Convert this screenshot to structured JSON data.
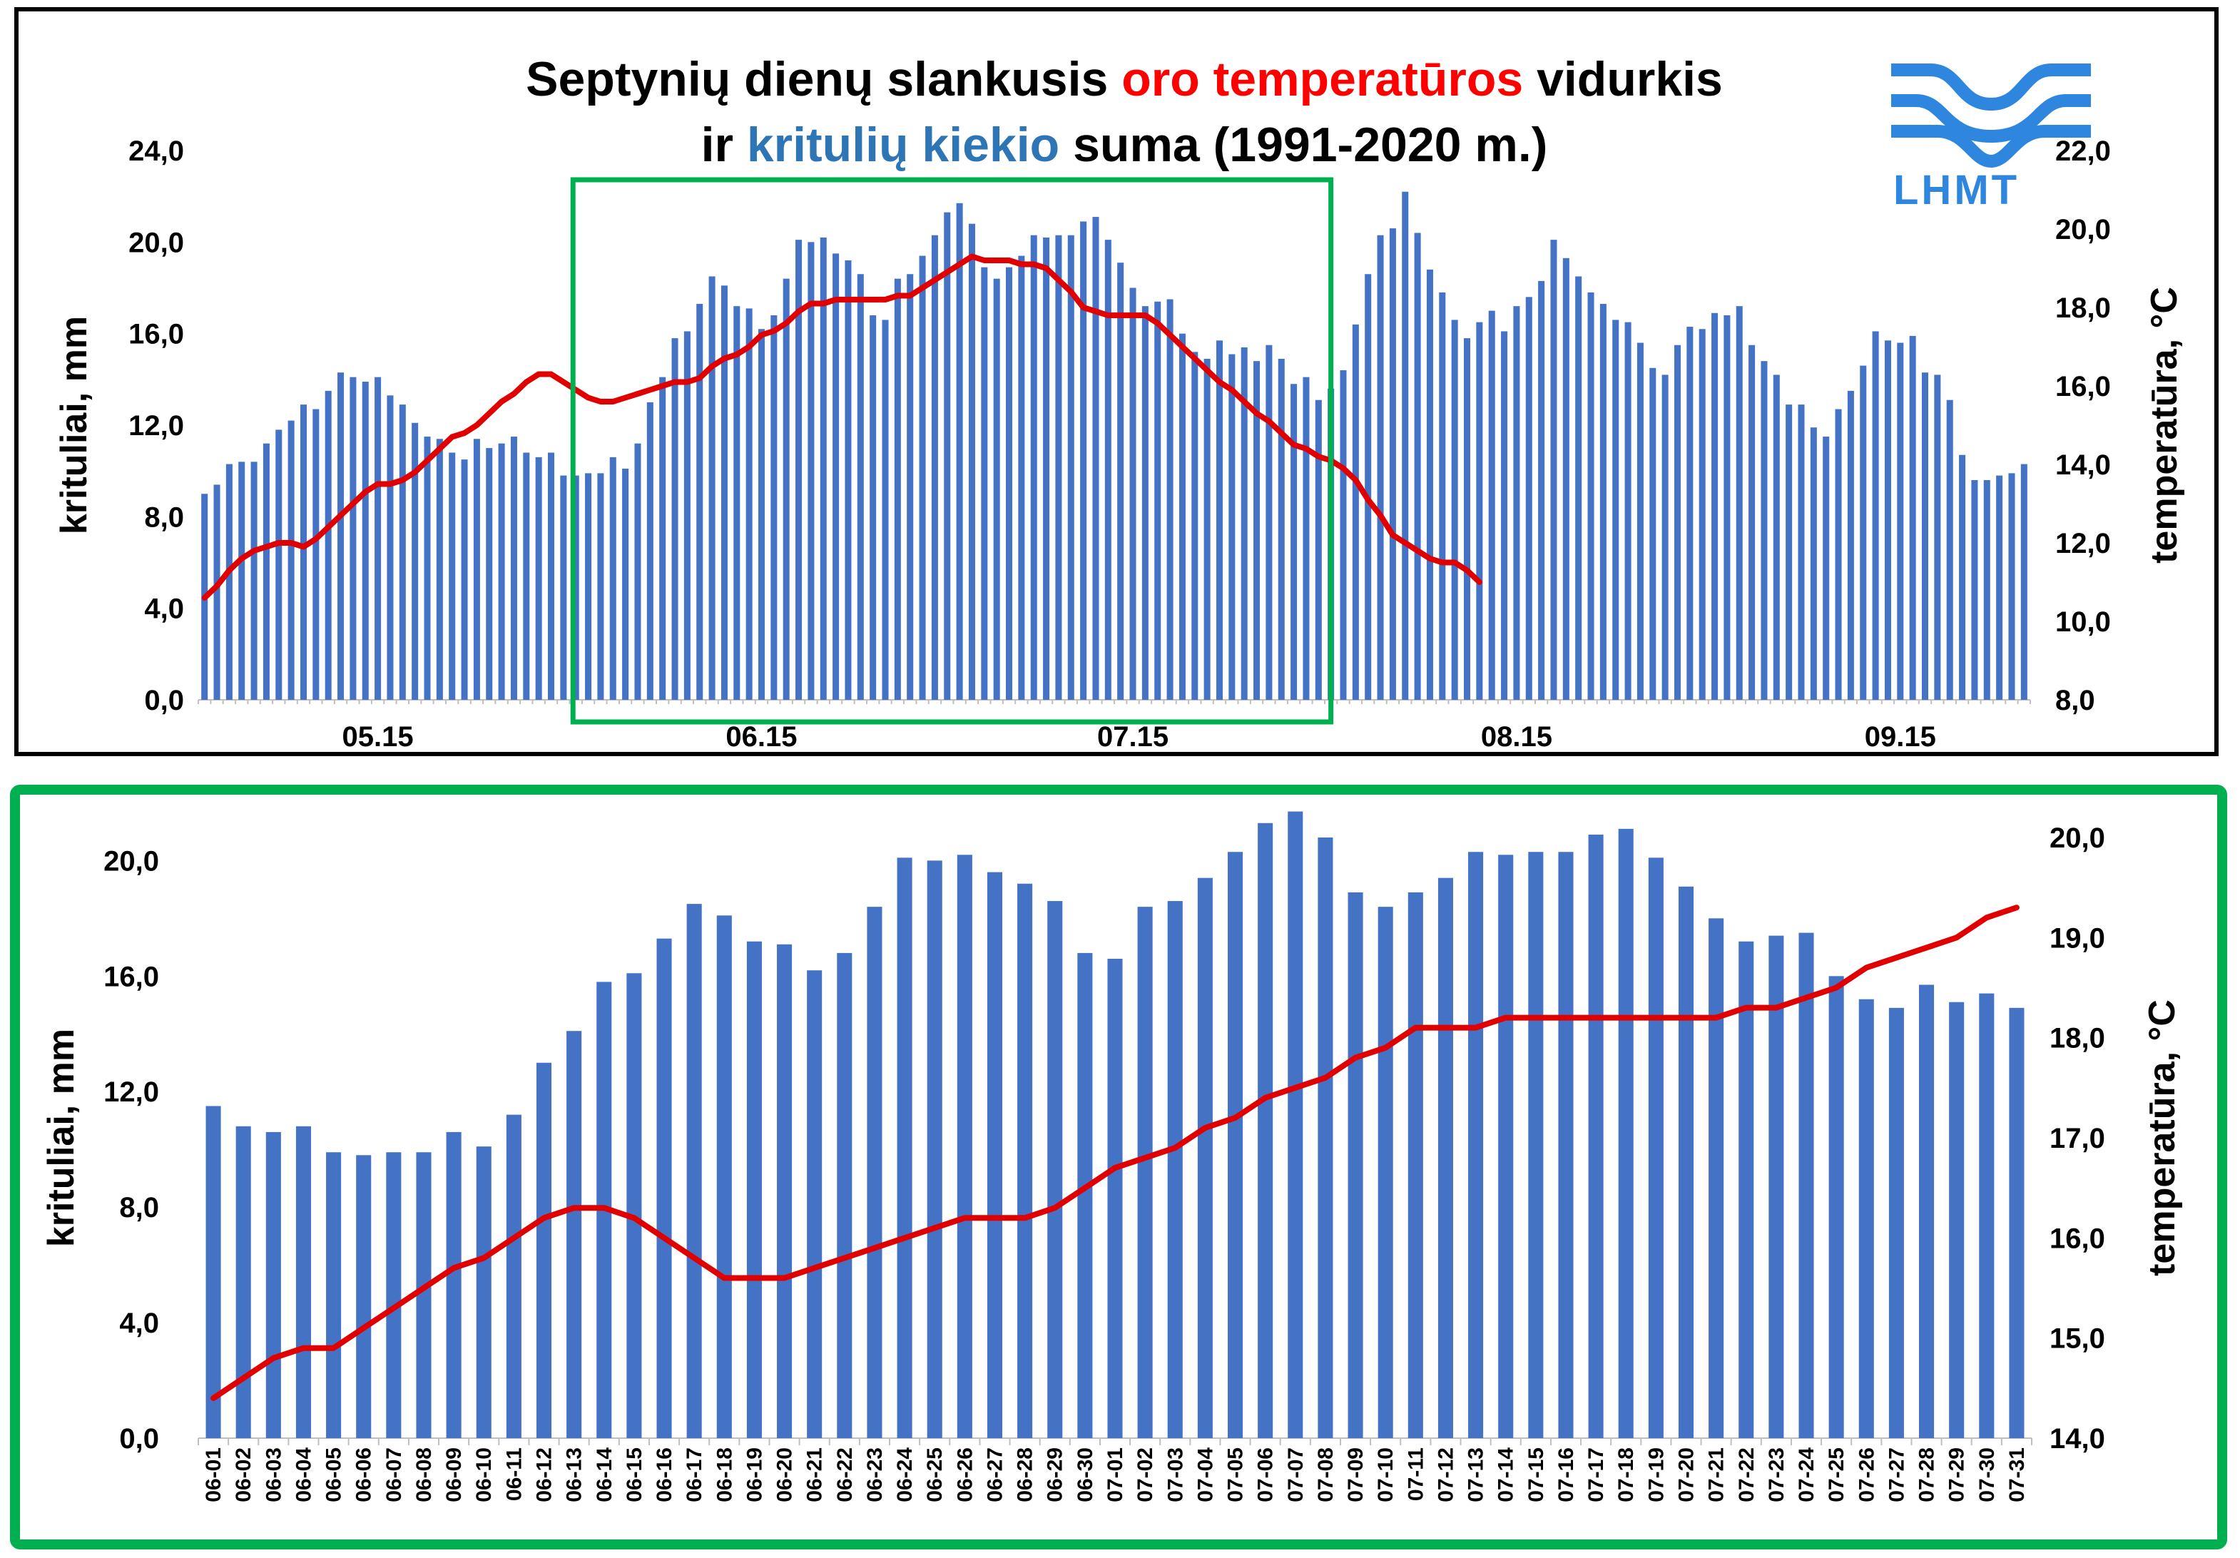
{
  "title": {
    "line1_prefix": "Septynių dienų slankusis ",
    "line1_red": "oro temperatūros",
    "line1_suffix": " vidurkis",
    "line2_prefix": "ir ",
    "line2_blue": "kritulių kiekio",
    "line2_suffix": " suma (1991-2020 m.)"
  },
  "logo": {
    "text": "LHMT"
  },
  "colors": {
    "bars": "#4472c4",
    "line": "#e00000",
    "title_red": "#ff0000",
    "title_blue": "#2e75b6",
    "highlight": "#00b050"
  },
  "chart_data": [
    {
      "type": "bar+line",
      "ylabel": "krituliai, mm",
      "y2label": "temperatūra, °C",
      "ylim": [
        0,
        24
      ],
      "y2lim": [
        8,
        22
      ],
      "yticks": [
        "0,0",
        "4,0",
        "8,0",
        "12,0",
        "16,0",
        "20,0",
        "24,0"
      ],
      "y2ticks": [
        "8,0",
        "10,0",
        "12,0",
        "14,0",
        "16,0",
        "18,0",
        "20,0",
        "22,0"
      ],
      "xticks": [
        "05.15",
        "06.15",
        "07.15",
        "08.15",
        "09.15"
      ],
      "highlight_range": [
        "06-01",
        "07-31"
      ],
      "start_date": "05-01",
      "precip_mm": [
        9.0,
        9.4,
        10.3,
        10.4,
        10.4,
        11.2,
        11.8,
        12.2,
        12.9,
        12.7,
        13.5,
        14.3,
        14.1,
        13.9,
        14.1,
        13.3,
        12.9,
        12.1,
        11.5,
        11.4,
        10.8,
        10.5,
        11.4,
        11.0,
        11.2,
        11.5,
        10.8,
        10.6,
        10.8,
        9.8,
        9.8,
        9.9,
        9.9,
        10.6,
        10.1,
        11.2,
        13.0,
        14.1,
        15.8,
        16.1,
        17.3,
        18.5,
        18.1,
        17.2,
        17.1,
        16.2,
        16.8,
        18.4,
        20.1,
        20.0,
        20.2,
        19.5,
        19.2,
        18.6,
        16.8,
        16.6,
        18.4,
        18.6,
        19.4,
        20.3,
        21.3,
        21.7,
        20.8,
        18.9,
        18.4,
        18.9,
        19.4,
        20.3,
        20.2,
        20.3,
        20.3,
        20.9,
        21.1,
        20.1,
        19.1,
        18.0,
        17.2,
        17.4,
        17.5,
        16.0,
        15.2,
        14.9,
        15.7,
        15.1,
        15.4,
        14.8,
        15.5,
        14.9,
        13.8,
        14.1,
        13.1,
        13.6,
        14.4,
        16.4,
        18.6,
        20.3,
        20.6,
        22.2,
        20.4,
        18.8,
        17.8,
        16.6,
        15.8,
        16.5,
        17.0,
        16.1,
        17.2,
        17.6,
        18.3,
        20.1,
        19.3,
        18.5,
        17.8,
        17.3,
        16.6,
        16.5,
        15.6,
        14.5,
        14.2,
        15.5,
        16.3,
        16.2,
        16.9,
        16.8,
        17.2,
        15.5,
        14.8,
        14.2,
        12.9,
        12.9,
        11.9,
        11.5,
        12.7,
        13.5,
        14.6,
        16.1,
        15.7,
        15.6,
        15.9,
        14.3,
        14.2,
        13.1,
        10.7,
        9.6,
        9.6,
        9.8,
        9.9,
        10.3
      ],
      "temp_c": [
        10.6,
        10.9,
        11.3,
        11.6,
        11.8,
        11.9,
        12.0,
        12.0,
        11.9,
        12.1,
        12.4,
        12.7,
        13.0,
        13.3,
        13.5,
        13.5,
        13.6,
        13.8,
        14.1,
        14.4,
        14.7,
        14.8,
        15.0,
        15.3,
        15.6,
        15.8,
        16.1,
        16.3,
        16.3,
        16.1,
        15.9,
        15.7,
        15.6,
        15.6,
        15.7,
        15.8,
        15.9,
        16.0,
        16.1,
        16.1,
        16.2,
        16.5,
        16.7,
        16.8,
        17.0,
        17.3,
        17.4,
        17.6,
        17.9,
        18.1,
        18.1,
        18.2,
        18.2,
        18.2,
        18.2,
        18.2,
        18.3,
        18.3,
        18.5,
        18.7,
        18.9,
        19.1,
        19.3,
        19.2,
        19.2,
        19.2,
        19.1,
        19.1,
        19.0,
        18.7,
        18.4,
        18.0,
        17.9,
        17.8,
        17.8,
        17.8,
        17.8,
        17.6,
        17.3,
        17.0,
        16.7,
        16.4,
        16.1,
        15.9,
        15.6,
        15.3,
        15.1,
        14.8,
        14.5,
        14.4,
        14.2,
        14.1,
        13.9,
        13.6,
        13.1,
        12.7,
        12.2,
        12.0,
        11.8,
        11.6,
        11.5,
        11.5,
        11.3,
        11.0
      ]
    },
    {
      "type": "bar+line",
      "ylabel": "krituliai, mm",
      "y2label": "temperatūra, °C",
      "ylim": [
        0,
        20.8
      ],
      "y2lim": [
        14,
        20
      ],
      "yticks": [
        "0,0",
        "4,0",
        "8,0",
        "12,0",
        "16,0",
        "20,0"
      ],
      "y2ticks": [
        "14,0",
        "15,0",
        "16,0",
        "17,0",
        "18,0",
        "19,0",
        "20,0"
      ],
      "categories": [
        "06-01",
        "06-02",
        "06-03",
        "06-04",
        "06-05",
        "06-06",
        "06-07",
        "06-08",
        "06-09",
        "06-10",
        "06-11",
        "06-12",
        "06-13",
        "06-14",
        "06-15",
        "06-16",
        "06-17",
        "06-18",
        "06-19",
        "06-20",
        "06-21",
        "06-22",
        "06-23",
        "06-24",
        "06-25",
        "06-26",
        "06-27",
        "06-28",
        "06-29",
        "06-30",
        "07-01",
        "07-02",
        "07-03",
        "07-04",
        "07-05",
        "07-06",
        "07-07",
        "07-08",
        "07-09",
        "07-10",
        "07-11",
        "07-12",
        "07-13",
        "07-14",
        "07-15",
        "07-16",
        "07-17",
        "07-18",
        "07-19",
        "07-20",
        "07-21",
        "07-22",
        "07-23",
        "07-24",
        "07-25",
        "07-26",
        "07-27",
        "07-28",
        "07-29",
        "07-30",
        "07-31"
      ],
      "precip_mm": [
        11.5,
        10.8,
        10.6,
        10.8,
        9.9,
        9.8,
        9.9,
        9.9,
        10.6,
        10.1,
        11.2,
        13.0,
        14.1,
        15.8,
        16.1,
        17.3,
        18.5,
        18.1,
        17.2,
        17.1,
        16.2,
        16.8,
        18.4,
        20.1,
        20.0,
        20.2,
        19.6,
        19.2,
        18.6,
        16.8,
        16.6,
        18.4,
        18.6,
        19.4,
        20.3,
        21.3,
        21.7,
        20.8,
        18.9,
        18.4,
        18.9,
        19.4,
        20.3,
        20.2,
        20.3,
        20.3,
        20.9,
        21.1,
        20.1,
        19.1,
        18.0,
        17.2,
        17.4,
        17.5,
        16.0,
        15.2,
        14.9,
        15.7,
        15.1,
        15.4,
        14.9
      ],
      "temp_c": [
        14.4,
        14.6,
        14.8,
        14.9,
        14.9,
        15.1,
        15.3,
        15.5,
        15.7,
        15.8,
        16.0,
        16.2,
        16.3,
        16.3,
        16.2,
        16.0,
        15.8,
        15.6,
        15.6,
        15.6,
        15.7,
        15.8,
        15.9,
        16.0,
        16.1,
        16.2,
        16.2,
        16.2,
        16.3,
        16.5,
        16.7,
        16.8,
        16.9,
        17.1,
        17.2,
        17.4,
        17.5,
        17.6,
        17.8,
        17.9,
        18.1,
        18.1,
        18.1,
        18.2,
        18.2,
        18.2,
        18.2,
        18.2,
        18.2,
        18.2,
        18.2,
        18.3,
        18.3,
        18.4,
        18.5,
        18.7,
        18.8,
        18.9,
        19.0,
        19.2,
        19.3
      ]
    }
  ]
}
